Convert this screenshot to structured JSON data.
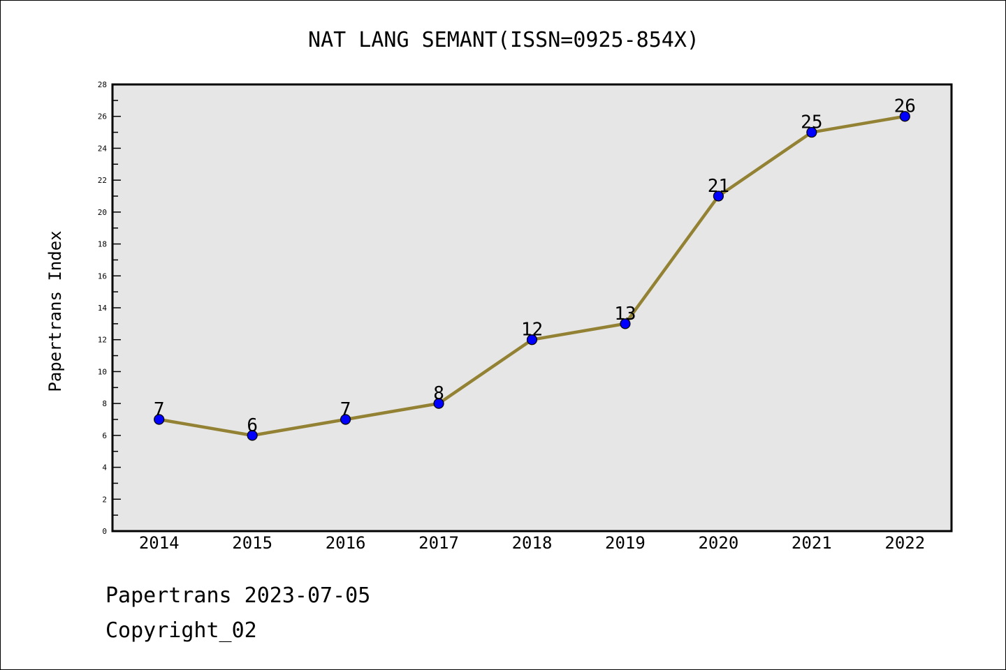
{
  "chart_data": {
    "type": "line",
    "title": "NAT LANG SEMANT(ISSN=0925-854X)",
    "xlabel": "",
    "ylabel": "Papertrans Index",
    "categories": [
      "2014",
      "2015",
      "2016",
      "2017",
      "2018",
      "2019",
      "2020",
      "2021",
      "2022"
    ],
    "series": [
      {
        "name": "Papertrans Index",
        "values": [
          7,
          6,
          7,
          8,
          12,
          13,
          21,
          25,
          26
        ]
      }
    ],
    "ylim": [
      0,
      28
    ],
    "yticks": [
      0,
      2,
      4,
      6,
      8,
      10,
      12,
      14,
      16,
      18,
      20,
      22,
      24,
      26,
      28
    ],
    "grid": false,
    "legend": "none",
    "colors": {
      "line": "#938233",
      "marker": "#0000ff",
      "plot_bg": "#e6e6e6"
    }
  },
  "footer": {
    "date_line": "Papertrans 2023-07-05",
    "copyright": "Copyright_02"
  }
}
